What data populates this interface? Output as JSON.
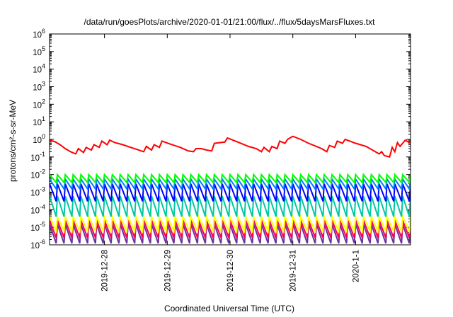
{
  "chart_data": {
    "type": "line",
    "title": "/data/run/goesPlots/archive/2020-01-01/21:00/flux/../flux/5daysMarsFluxes.txt",
    "xlabel": "Coordinated Universal Time (UTC)",
    "ylabel": "protons/cm²-s-sr-MeV",
    "yscale": "log",
    "ylim": [
      1e-06,
      1000000.0
    ],
    "y_tick_exponents": [
      -6,
      -5,
      -4,
      -3,
      -2,
      -1,
      0,
      1,
      2,
      3,
      4,
      5,
      6
    ],
    "xlim": [
      "2019-12-27 03:00",
      "2020-01-01 21:00"
    ],
    "x_ticks": [
      {
        "label": "2019-12-28",
        "t": "2019-12-28 00:00"
      },
      {
        "label": "2019-12-29",
        "t": "2019-12-29 00:00"
      },
      {
        "label": "2019-12-30",
        "t": "2019-12-30 00:00"
      },
      {
        "label": "2019-12-31",
        "t": "2019-12-31 00:00"
      },
      {
        "label": "2020-1-1",
        "t": "2020-01-01 00:00"
      }
    ],
    "grid": false,
    "legend": "none",
    "series": [
      {
        "color": "#ff0000",
        "points": [
          [
            "2019-12-27 03:00",
            0.9
          ],
          [
            "2019-12-27 05:00",
            0.75
          ],
          [
            "2019-12-27 07:00",
            0.5
          ],
          [
            "2019-12-27 09:00",
            0.3
          ],
          [
            "2019-12-27 11:00",
            0.2
          ],
          [
            "2019-12-27 13:00",
            0.15
          ],
          [
            "2019-12-27 14:00",
            0.3
          ],
          [
            "2019-12-27 16:00",
            0.18
          ],
          [
            "2019-12-27 17:00",
            0.35
          ],
          [
            "2019-12-27 19:00",
            0.25
          ],
          [
            "2019-12-27 20:00",
            0.5
          ],
          [
            "2019-12-27 22:00",
            0.35
          ],
          [
            "2019-12-27 23:00",
            0.8
          ],
          [
            "2019-12-28 01:00",
            0.5
          ],
          [
            "2019-12-28 02:00",
            0.9
          ],
          [
            "2019-12-28 04:00",
            0.65
          ],
          [
            "2019-12-28 07:00",
            0.5
          ],
          [
            "2019-12-28 10:00",
            0.35
          ],
          [
            "2019-12-28 12:00",
            0.28
          ],
          [
            "2019-12-28 15:00",
            0.2
          ],
          [
            "2019-12-28 16:00",
            0.4
          ],
          [
            "2019-12-28 18:00",
            0.25
          ],
          [
            "2019-12-28 19:00",
            0.5
          ],
          [
            "2019-12-28 21:00",
            0.35
          ],
          [
            "2019-12-28 22:00",
            0.8
          ],
          [
            "2019-12-29 01:00",
            0.55
          ],
          [
            "2019-12-29 05:00",
            0.35
          ],
          [
            "2019-12-29 08:00",
            0.22
          ],
          [
            "2019-12-29 10:00",
            0.2
          ],
          [
            "2019-12-29 11:00",
            0.3
          ],
          [
            "2019-12-29 13:00",
            0.3
          ],
          [
            "2019-12-29 15:00",
            0.25
          ],
          [
            "2019-12-29 17:00",
            0.22
          ],
          [
            "2019-12-29 18:00",
            0.6
          ],
          [
            "2019-12-29 22:00",
            0.7
          ],
          [
            "2019-12-29 23:00",
            1.2
          ],
          [
            "2019-12-30 03:00",
            0.7
          ],
          [
            "2019-12-30 07:00",
            0.4
          ],
          [
            "2019-12-30 10:00",
            0.3
          ],
          [
            "2019-12-30 12:00",
            0.2
          ],
          [
            "2019-12-30 13:00",
            0.35
          ],
          [
            "2019-12-30 15:00",
            0.2
          ],
          [
            "2019-12-30 16:00",
            0.4
          ],
          [
            "2019-12-30 18:00",
            0.3
          ],
          [
            "2019-12-30 19:00",
            0.8
          ],
          [
            "2019-12-30 21:00",
            0.6
          ],
          [
            "2019-12-30 22:00",
            1.0
          ],
          [
            "2019-12-31 00:00",
            1.5
          ],
          [
            "2019-12-31 03:00",
            1.0
          ],
          [
            "2019-12-31 06:00",
            0.6
          ],
          [
            "2019-12-31 09:00",
            0.4
          ],
          [
            "2019-12-31 11:00",
            0.3
          ],
          [
            "2019-12-31 13:00",
            0.2
          ],
          [
            "2019-12-31 14:00",
            0.45
          ],
          [
            "2019-12-31 16:00",
            0.35
          ],
          [
            "2019-12-31 17:00",
            0.8
          ],
          [
            "2019-12-31 19:00",
            0.6
          ],
          [
            "2019-12-31 20:00",
            1.0
          ],
          [
            "2020-01-01 00:00",
            0.6
          ],
          [
            "2020-01-01 04:00",
            0.4
          ],
          [
            "2020-01-01 07:00",
            0.22
          ],
          [
            "2020-01-01 09:00",
            0.15
          ],
          [
            "2020-01-01 10:00",
            0.2
          ],
          [
            "2020-01-01 11:00",
            0.12
          ],
          [
            "2020-01-01 13:00",
            0.1
          ],
          [
            "2020-01-01 14:00",
            0.35
          ],
          [
            "2020-01-01 15:00",
            0.2
          ],
          [
            "2020-01-01 16:00",
            0.65
          ],
          [
            "2020-01-01 17:00",
            0.4
          ],
          [
            "2020-01-01 19:00",
            0.9
          ],
          [
            "2020-01-01 21:00",
            0.6
          ]
        ]
      },
      {
        "color": "#00ff00",
        "sawtooth": {
          "start": "2019-12-27 03:00",
          "end": "2020-01-01 21:00",
          "step_hours": 3,
          "peak": 0.01,
          "trough": 0.0035
        }
      },
      {
        "color": "#0080ff",
        "sawtooth": {
          "start": "2019-12-27 03:00",
          "end": "2020-01-01 21:00",
          "step_hours": 3,
          "peak": 0.0055,
          "trough": 0.0015
        }
      },
      {
        "color": "#0000ff",
        "sawtooth": {
          "start": "2019-12-27 03:00",
          "end": "2020-01-01 21:00",
          "step_hours": 3,
          "peak": 0.003,
          "trough": 0.0003
        }
      },
      {
        "color": "#00c8a0",
        "sawtooth": {
          "start": "2019-12-27 03:00",
          "end": "2020-01-01 21:00",
          "step_hours": 3,
          "peak": 0.0006,
          "trough": 4e-05
        }
      },
      {
        "color": "#ffff00",
        "sawtooth": {
          "start": "2019-12-27 03:00",
          "end": "2020-01-01 21:00",
          "step_hours": 3,
          "peak": 4e-05,
          "trough": 6e-06
        }
      },
      {
        "color": "#ff0050",
        "sawtooth": {
          "start": "2019-12-27 03:00",
          "end": "2020-01-01 21:00",
          "step_hours": 3,
          "peak": 2.5e-05,
          "trough": 2.5e-06
        }
      },
      {
        "color": "#7030a0",
        "sawtooth": {
          "start": "2019-12-27 03:00",
          "end": "2020-01-01 21:00",
          "step_hours": 3,
          "peak": 1.5e-05,
          "trough": 1.2e-06
        }
      }
    ]
  }
}
